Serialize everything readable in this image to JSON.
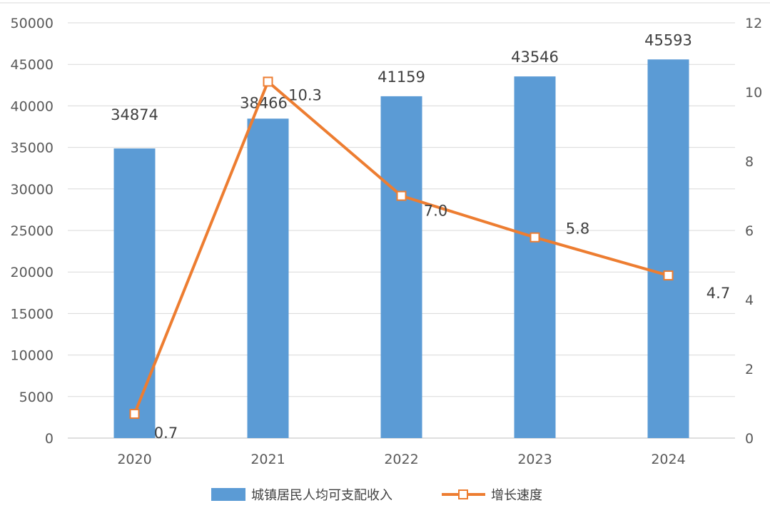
{
  "chart_data": {
    "type": "bar",
    "categories": [
      "2020",
      "2021",
      "2022",
      "2023",
      "2024"
    ],
    "series": [
      {
        "name": "城镇居民人均可支配收入",
        "type": "bar",
        "axis": "left",
        "values": [
          34874,
          38466,
          41159,
          43546,
          45593
        ],
        "color": "#5b9bd5"
      },
      {
        "name": "增长速度",
        "type": "line",
        "axis": "right",
        "values": [
          0.7,
          10.3,
          7.0,
          5.8,
          4.7
        ],
        "labels": [
          "0.7",
          "10.3",
          "7.0",
          "5.8",
          "4.7"
        ],
        "color": "#ed7d31"
      }
    ],
    "y_left": {
      "ylim": [
        0,
        50000
      ],
      "ticks": [
        0,
        5000,
        10000,
        15000,
        20000,
        25000,
        30000,
        35000,
        40000,
        45000,
        50000
      ]
    },
    "y_right": {
      "ylim": [
        0,
        12
      ],
      "ticks": [
        0,
        2,
        4,
        6,
        8,
        10,
        12
      ]
    },
    "title": "",
    "xlabel": "",
    "ylabel": "",
    "grid": true,
    "legend_position": "bottom"
  }
}
